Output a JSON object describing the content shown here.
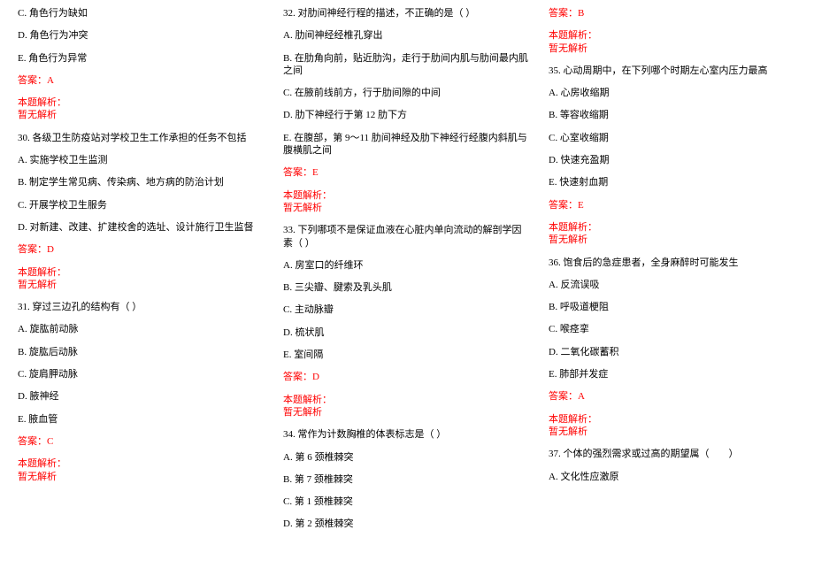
{
  "colors": {
    "text": "#000000",
    "red": "#ff0000",
    "bg": "#ffffff"
  },
  "fontsize": 11,
  "col1": {
    "opt_c": "C. 角色行为缺如",
    "opt_d": "D. 角色行为冲突",
    "opt_e": "E. 角色行为异常",
    "ans29": "答案：A",
    "anlabel29": "本题解析：",
    "annone29": "暂无解析",
    "q30": "30. 各级卫生防疫站对学校卫生工作承担的任务不包括",
    "q30a": "A. 实施学校卫生监测",
    "q30b": "B. 制定学生常见病、传染病、地方病的防治计划",
    "q30c": "C. 开展学校卫生服务",
    "q30d": "D. 对新建、改建、扩建校舍的选址、设计施行卫生监督",
    "ans30": "答案：D",
    "anlabel30": "本题解析：",
    "annone30": "暂无解析",
    "q31": "31. 穿过三边孔的结构有（ ）",
    "q31a": "A. 旋肱前动脉",
    "q31b": "B. 旋肱后动脉",
    "q31c": "C. 旋肩胛动脉",
    "q31d": "D. 腋神经",
    "q31e": "E. 腋血管",
    "ans31": "答案：C",
    "anlabel31": "本题解析：",
    "annone31": "暂无解析"
  },
  "col2": {
    "q32": "32. 对肋间神经行程的描述，不正确的是（ ）",
    "q32a": "A. 肋间神经经椎孔穿出",
    "q32b": "B. 在肋角向前，贴近肋沟，走行于肋间内肌与肋间最内肌之间",
    "q32c": "C. 在腋前线前方，行于肋间隙的中间",
    "q32d": "D. 肋下神经行于第 12 肋下方",
    "q32e": "E. 在腹部，第 9～11 肋间神经及肋下神经行经腹内斜肌与腹横肌之间",
    "ans32": "答案：E",
    "anlabel32": "本题解析：",
    "annone32": "暂无解析",
    "q33": "33. 下列哪项不是保证血液在心脏内单向流动的解剖学因素（ ）",
    "q33a": "A. 房室口的纤维环",
    "q33b": "B. 三尖瓣、腱索及乳头肌",
    "q33c": "C. 主动脉瓣",
    "q33d": "D. 梳状肌",
    "q33e": "E. 室间隔",
    "ans33": "答案：D",
    "anlabel33": "本题解析：",
    "annone33": "暂无解析",
    "q34": "34. 常作为计数胸椎的体表标志是（ ）",
    "q34a": "A. 第 6 颈椎棘突",
    "q34b": "B. 第 7 颈椎棘突",
    "q34c": "C. 第 1 颈椎棘突",
    "q34d": "D. 第 2 颈椎棘突"
  },
  "col3": {
    "ans34": "答案：B",
    "anlabel34": "本题解析：",
    "annone34": "暂无解析",
    "q35": "35. 心动周期中，在下列哪个时期左心室内压力最高",
    "q35a": "A. 心房收缩期",
    "q35b": "B. 等容收缩期",
    "q35c": "C. 心室收缩期",
    "q35d": "D. 快速充盈期",
    "q35e": "E. 快速射血期",
    "ans35": "答案：E",
    "anlabel35": "本题解析：",
    "annone35": "暂无解析",
    "q36": "36. 饱食后的急症患者，全身麻醉时可能发生",
    "q36a": "A. 反流误吸",
    "q36b": "B. 呼吸道梗阻",
    "q36c": "C. 喉痉挛",
    "q36d": "D. 二氧化碳蓄积",
    "q36e": "E. 肺部并发症",
    "ans36": "答案：A",
    "anlabel36": "本题解析：",
    "annone36": "暂无解析",
    "q37": "37. 个体的强烈需求或过高的期望属（　　）",
    "q37a": "A. 文化性应激原"
  }
}
